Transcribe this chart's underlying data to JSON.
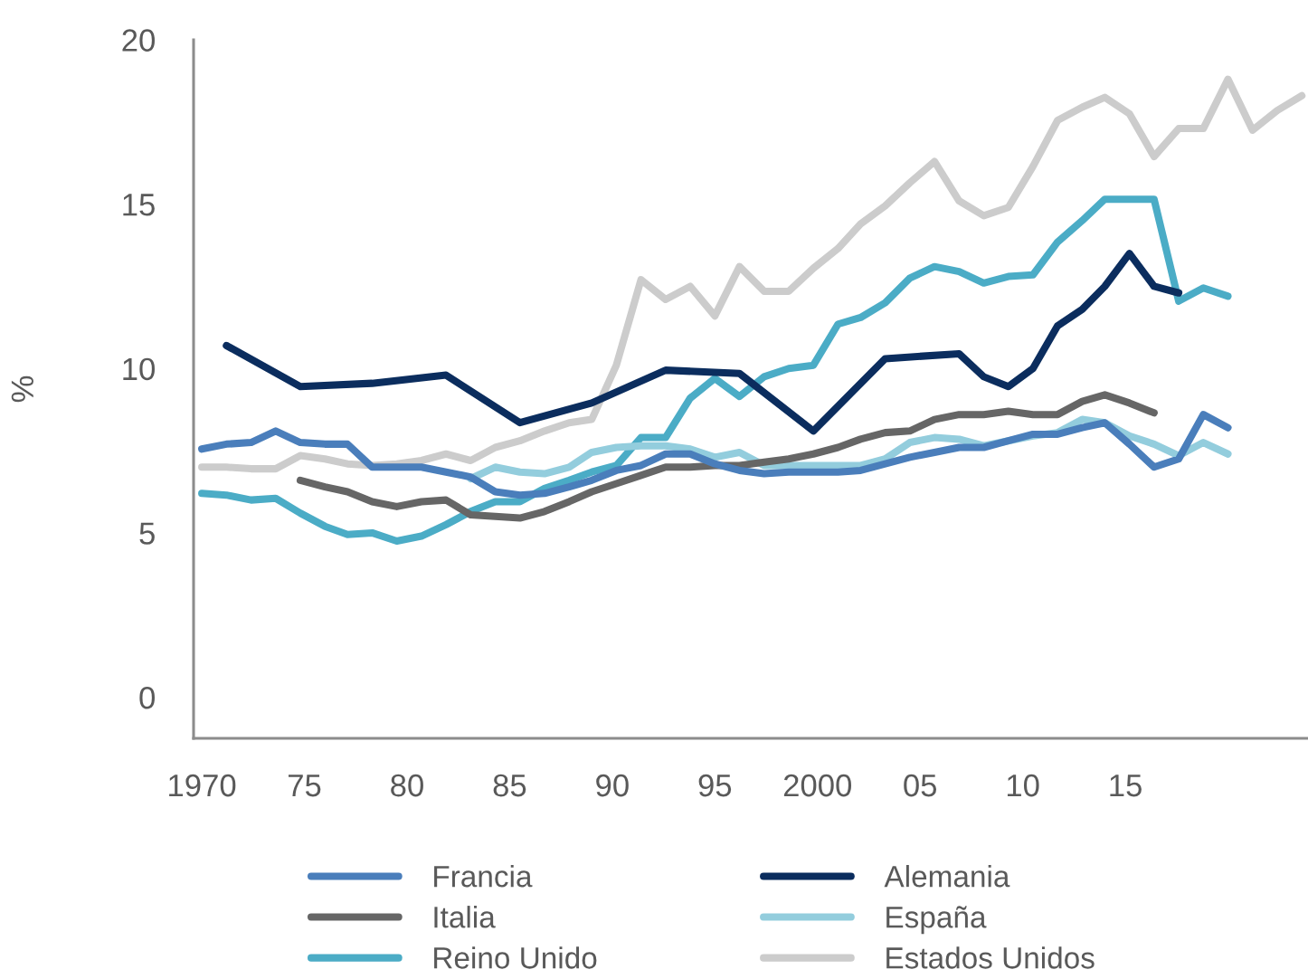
{
  "chart_data": {
    "type": "line",
    "ylabel": "%",
    "xlim": [
      1969.6,
      2023.9
    ],
    "xticks": [
      {
        "value": 1970,
        "label": "1970"
      },
      {
        "value": 1975,
        "label": "75"
      },
      {
        "value": 1980,
        "label": "80"
      },
      {
        "value": 1985,
        "label": "85"
      },
      {
        "value": 1990,
        "label": "90"
      },
      {
        "value": 1995,
        "label": "95"
      },
      {
        "value": 2000,
        "label": "2000"
      },
      {
        "value": 2005,
        "label": "05"
      },
      {
        "value": 2010,
        "label": "10"
      },
      {
        "value": 2015,
        "label": "15"
      }
    ],
    "ylim": [
      -1.25,
      20
    ],
    "yticks": [
      0,
      5,
      10,
      15,
      20
    ],
    "legend": "bottom",
    "x": [
      1970.0,
      1971.2,
      1972.4,
      1973.6,
      1974.8,
      1976.0,
      1977.1,
      1978.3,
      1979.5,
      1980.7,
      1981.9,
      1983.1,
      1984.3,
      1985.5,
      1986.7,
      1987.9,
      1989.0,
      1990.2,
      1991.4,
      1992.6,
      1993.8,
      1995.0,
      1996.2,
      1997.4,
      1998.6,
      1999.8,
      2001.0,
      2002.1,
      2003.3,
      2004.5,
      2005.7,
      2006.9,
      2008.1,
      2009.3,
      2010.5,
      2011.7,
      2012.9,
      2014.0,
      2015.2,
      2016.4,
      2017.6,
      2018.8,
      2020.0,
      2021.2,
      2022.4,
      2023.6
    ],
    "series": [
      {
        "name": "Francia",
        "color": "#4a7ebb",
        "values": [
          7.55,
          7.7,
          7.75,
          8.1,
          7.75,
          7.7,
          7.7,
          7.0,
          7.0,
          7.0,
          6.85,
          6.7,
          6.25,
          6.15,
          6.2,
          6.4,
          6.6,
          6.9,
          7.05,
          7.4,
          7.4,
          7.1,
          6.9,
          6.8,
          6.85,
          6.85,
          6.85,
          6.9,
          7.1,
          7.3,
          7.45,
          7.6,
          7.6,
          7.8,
          8.0,
          8.0,
          8.2,
          8.35,
          7.7,
          7.0,
          7.25,
          8.6,
          8.2,
          null,
          null,
          null
        ]
      },
      {
        "name": "Alemania",
        "color": "#0b2d5e",
        "x": [
          1971.2,
          1974.8,
          1978.3,
          1981.9,
          1985.5,
          1989.0,
          1992.6,
          1996.2,
          1999.8,
          2003.3,
          2006.9,
          2008.1,
          2009.3,
          2010.5,
          2011.7,
          2012.9,
          2014.0,
          2015.2,
          2016.4,
          2017.6
        ],
        "values": [
          10.7,
          9.45,
          9.55,
          9.8,
          8.35,
          8.95,
          9.95,
          9.85,
          8.1,
          10.3,
          10.45,
          9.75,
          9.45,
          10.0,
          11.3,
          11.8,
          12.5,
          13.5,
          12.5,
          12.3
        ]
      },
      {
        "name": "Italia",
        "color": "#666666",
        "values": [
          null,
          null,
          null,
          null,
          6.6,
          6.4,
          6.25,
          5.95,
          5.8,
          5.95,
          6.0,
          5.55,
          5.5,
          5.45,
          5.65,
          5.95,
          6.25,
          6.5,
          6.75,
          7.0,
          7.0,
          7.05,
          7.05,
          7.15,
          7.25,
          7.4,
          7.6,
          7.85,
          8.05,
          8.1,
          8.45,
          8.6,
          8.6,
          8.7,
          8.6,
          8.6,
          9.0,
          9.2,
          8.95,
          8.65,
          null,
          null,
          null,
          null,
          null,
          null
        ]
      },
      {
        "name": "España",
        "color": "#93cddd",
        "values": [
          null,
          null,
          null,
          null,
          null,
          null,
          null,
          null,
          null,
          null,
          null,
          6.65,
          7.0,
          6.85,
          6.8,
          7.0,
          7.45,
          7.6,
          7.65,
          7.65,
          7.55,
          7.3,
          7.45,
          7.05,
          7.05,
          7.05,
          7.05,
          7.05,
          7.25,
          7.75,
          7.9,
          7.85,
          7.65,
          7.8,
          7.95,
          8.05,
          8.45,
          8.35,
          7.95,
          7.7,
          7.35,
          7.75,
          7.4,
          null,
          null,
          null
        ]
      },
      {
        "name": "Reino Unido",
        "color": "#4bacc6",
        "values": [
          6.2,
          6.15,
          6.0,
          6.05,
          5.6,
          5.2,
          4.95,
          5.0,
          4.75,
          4.9,
          5.25,
          5.65,
          5.95,
          5.95,
          6.35,
          6.6,
          6.85,
          7.05,
          7.9,
          7.9,
          9.1,
          9.7,
          9.15,
          9.75,
          10.0,
          10.1,
          11.35,
          11.55,
          12.0,
          12.75,
          13.1,
          12.95,
          12.6,
          12.8,
          12.85,
          13.85,
          14.5,
          15.15,
          15.15,
          15.15,
          12.05,
          12.45,
          12.2,
          null,
          null,
          null
        ]
      },
      {
        "name": "Estados Unidos",
        "color": "#cccccc",
        "values": [
          7.0,
          7.0,
          6.95,
          6.95,
          7.35,
          7.25,
          7.1,
          7.05,
          7.1,
          7.2,
          7.4,
          7.2,
          7.6,
          7.8,
          8.1,
          8.35,
          8.45,
          10.1,
          12.7,
          12.1,
          12.5,
          11.6,
          13.1,
          12.35,
          12.35,
          13.05,
          13.65,
          14.4,
          14.95,
          15.65,
          16.3,
          15.1,
          14.65,
          14.9,
          16.15,
          17.55,
          17.95,
          18.25,
          17.75,
          16.45,
          17.3,
          17.3,
          18.8,
          17.25,
          17.85,
          18.3
        ]
      }
    ]
  }
}
